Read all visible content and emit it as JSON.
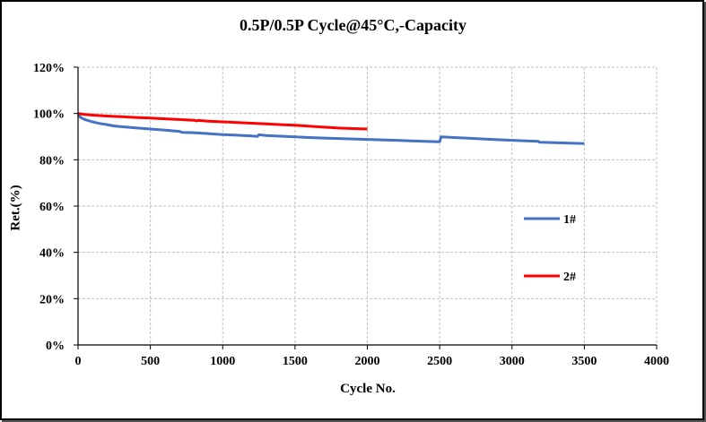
{
  "chart_data": {
    "type": "line",
    "title": "0.5P/0.5P Cycle@45°C,-Capacity",
    "xlabel": "Cycle No.",
    "ylabel": "Ret.(%)",
    "xlim": [
      0,
      4000
    ],
    "ylim": [
      0,
      120
    ],
    "x_ticks": [
      0,
      500,
      1000,
      1500,
      2000,
      2500,
      3000,
      3500,
      4000
    ],
    "x_tick_labels": [
      "0",
      "500",
      "1000",
      "1500",
      "2000",
      "2500",
      "3000",
      "3500",
      "4000"
    ],
    "y_ticks": [
      0,
      20,
      40,
      60,
      80,
      100,
      120
    ],
    "y_tick_labels": [
      "0%",
      "20%",
      "40%",
      "60%",
      "80%",
      "100%",
      "120%"
    ],
    "grid": true,
    "legend_position": "right",
    "series": [
      {
        "name": "1#",
        "color": "#4472c4",
        "x": [
          0,
          20,
          50,
          100,
          150,
          200,
          250,
          300,
          400,
          500,
          600,
          700,
          720,
          800,
          900,
          1000,
          1100,
          1200,
          1240,
          1250,
          1300,
          1400,
          1500,
          1600,
          1700,
          1800,
          1900,
          2000,
          2100,
          2200,
          2300,
          2400,
          2500,
          2510,
          2600,
          2700,
          2800,
          2900,
          3000,
          3100,
          3180,
          3190,
          3300,
          3400,
          3500
        ],
        "y": [
          99.5,
          98.2,
          97.3,
          96.4,
          95.7,
          95.2,
          94.6,
          94.3,
          93.8,
          93.3,
          92.8,
          92.3,
          91.8,
          91.7,
          91.3,
          90.9,
          90.6,
          90.3,
          90.1,
          90.8,
          90.5,
          90.2,
          89.9,
          89.6,
          89.4,
          89.2,
          89.0,
          88.8,
          88.6,
          88.4,
          88.2,
          88.0,
          87.8,
          89.9,
          89.6,
          89.3,
          89.0,
          88.7,
          88.4,
          88.2,
          88.0,
          87.6,
          87.4,
          87.2,
          87.0
        ]
      },
      {
        "name": "2#",
        "color": "#ff0000",
        "x": [
          0,
          50,
          100,
          200,
          300,
          400,
          500,
          600,
          700,
          800,
          820,
          830,
          900,
          1000,
          1100,
          1200,
          1300,
          1400,
          1500,
          1600,
          1700,
          1800,
          1900,
          2000
        ],
        "y": [
          100.0,
          99.6,
          99.3,
          98.9,
          98.6,
          98.3,
          98.0,
          97.7,
          97.4,
          97.1,
          96.8,
          97.0,
          96.7,
          96.4,
          96.1,
          95.8,
          95.5,
          95.2,
          94.9,
          94.5,
          94.1,
          93.7,
          93.5,
          93.3
        ]
      }
    ]
  }
}
